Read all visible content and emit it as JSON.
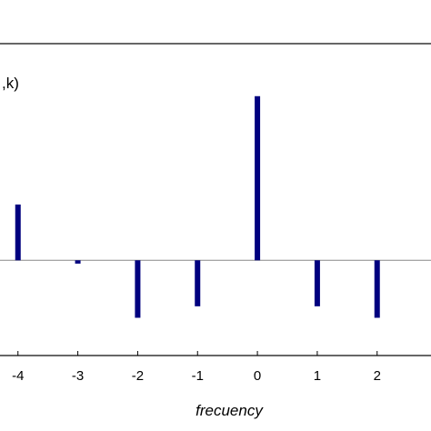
{
  "chart_data": {
    "type": "bar",
    "x": [
      -4,
      -3,
      -2,
      -1,
      0,
      1,
      2
    ],
    "values": [
      0.34,
      -0.02,
      -0.35,
      -0.28,
      1.0,
      -0.28,
      -0.35
    ],
    "xlabel": "frecuency",
    "ylabel_fragment": ",k)",
    "xticks": [
      "-4",
      "-3",
      "-2",
      "-1",
      "0",
      "1",
      "2"
    ],
    "xlim": [
      -4.3,
      2.9
    ],
    "ylim": [
      -0.58,
      1.32
    ],
    "bar_color": "#00007f",
    "zero_line_color": "#888888",
    "grid": false
  }
}
